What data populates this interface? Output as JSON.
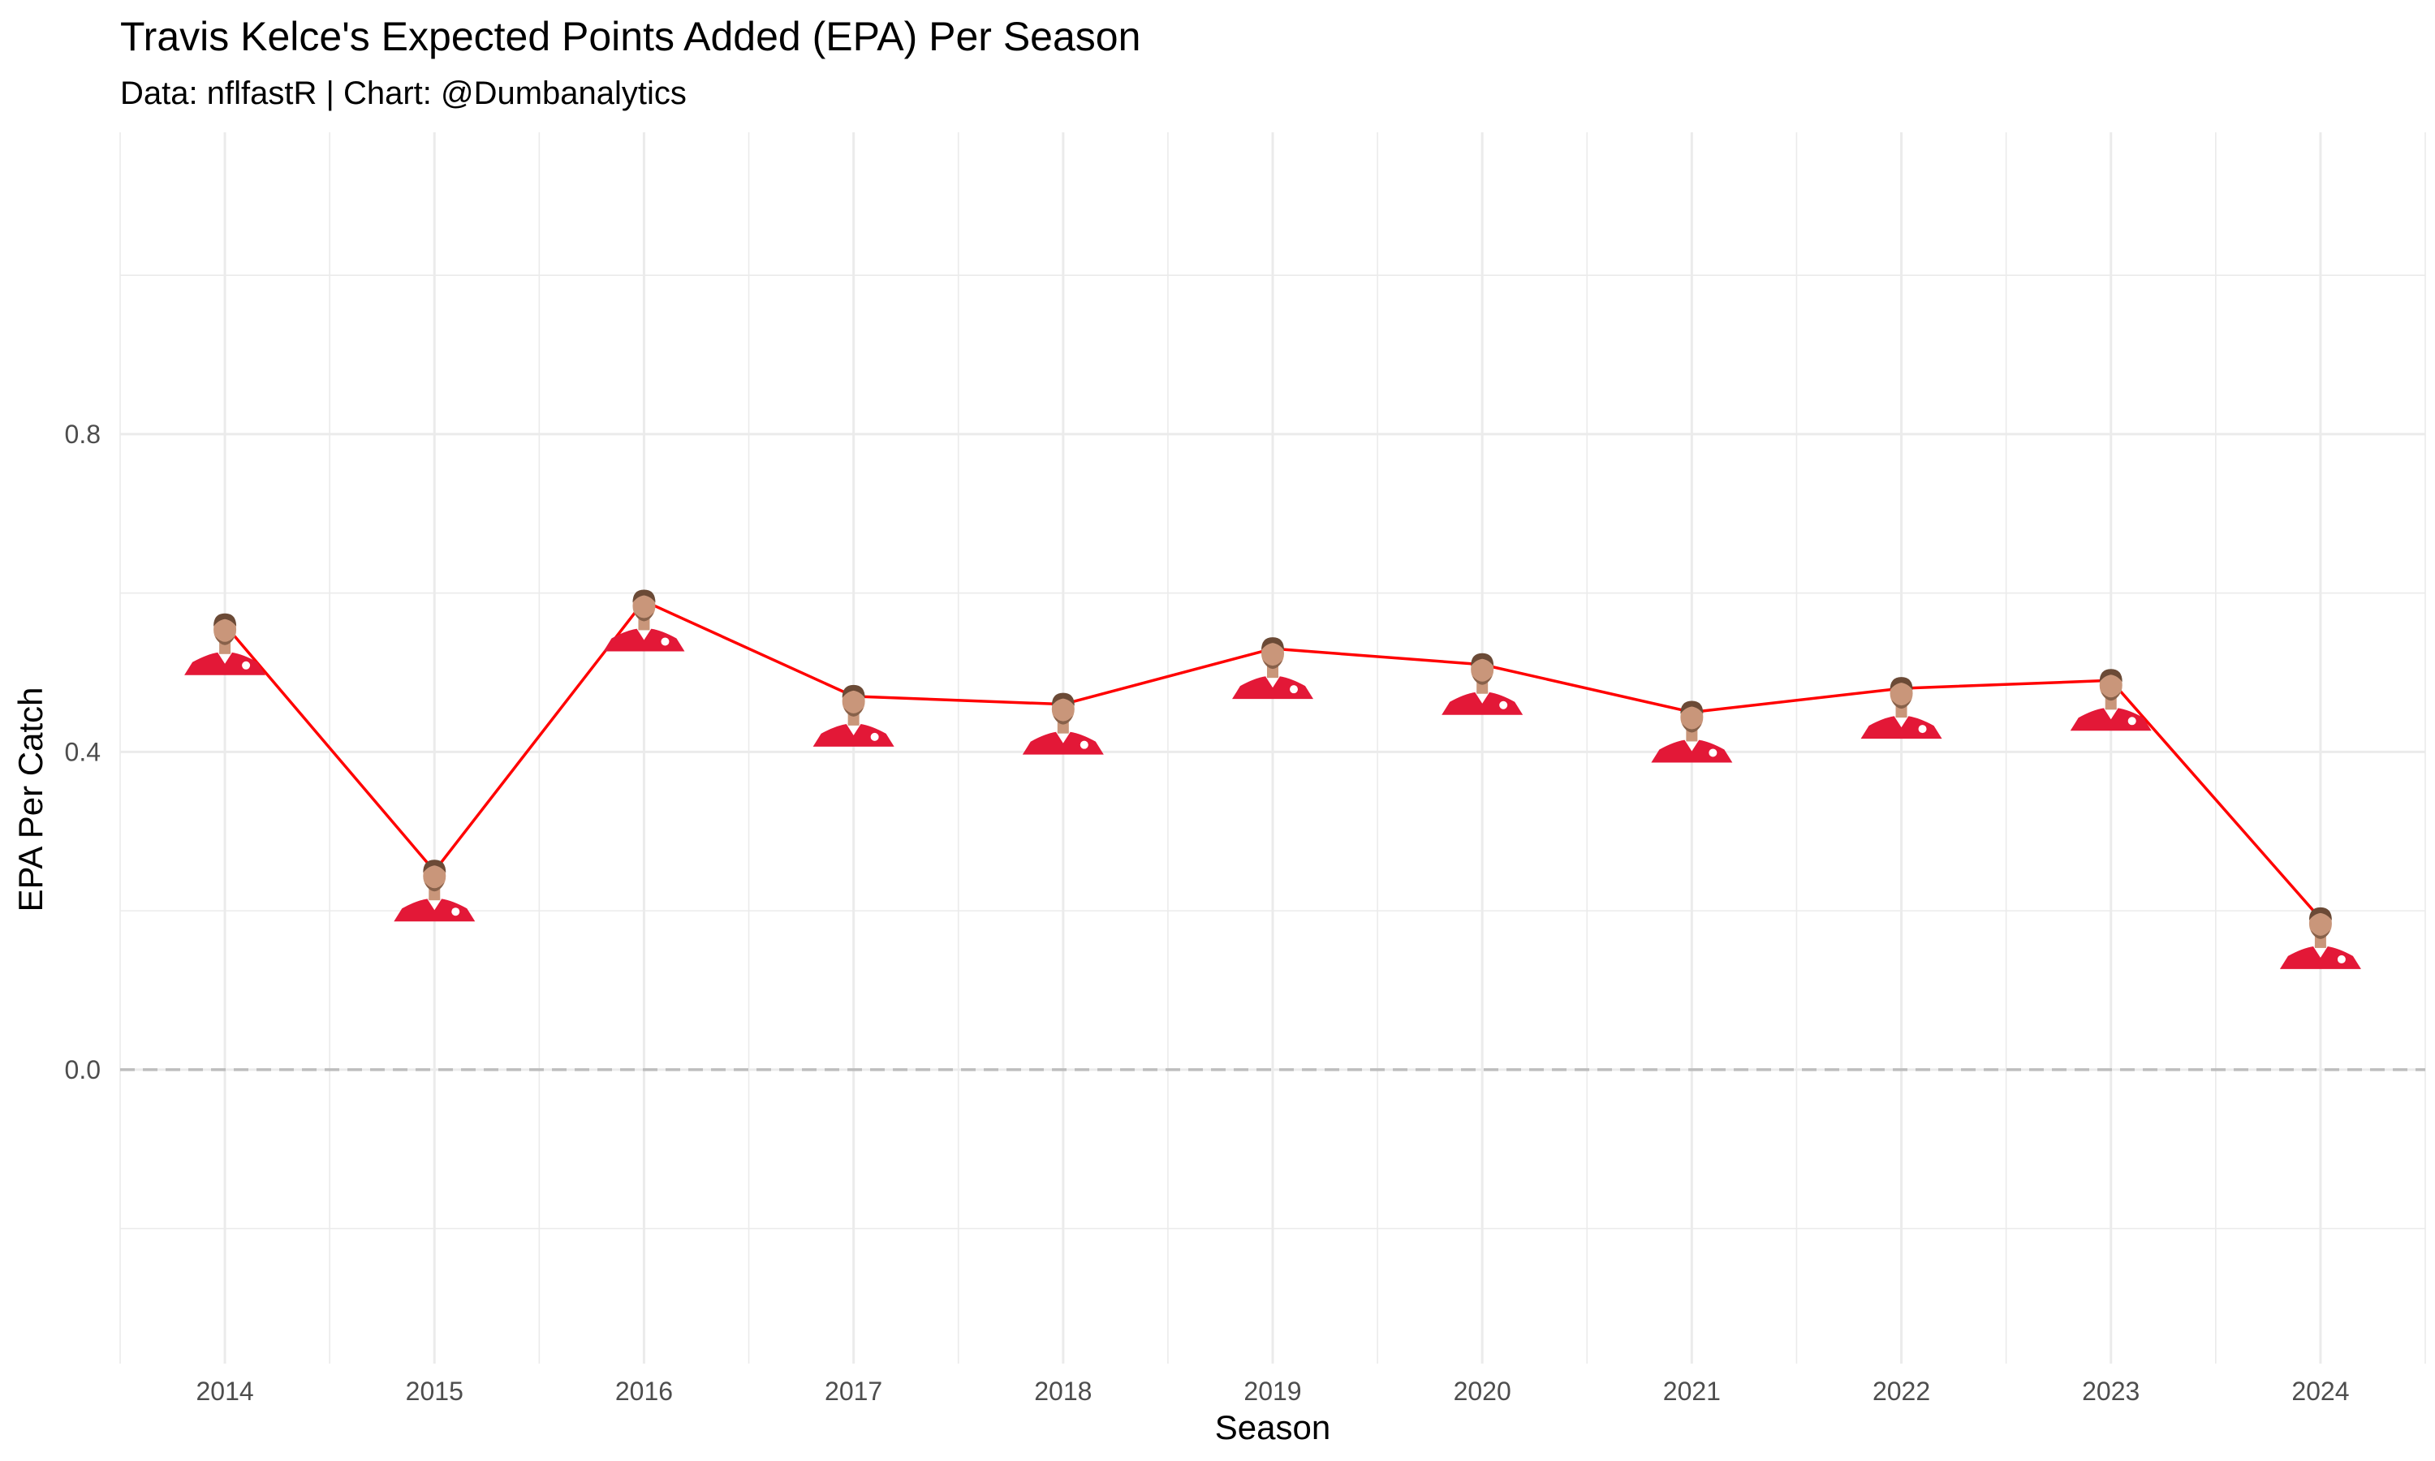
{
  "chart_data": {
    "type": "line",
    "title": "Travis Kelce's Expected Points Added (EPA) Per Season",
    "subtitle": "Data: nflfastR | Chart: @Dumbanalytics",
    "xlabel": "Season",
    "ylabel": "EPA Per Catch",
    "x": [
      2014,
      2015,
      2016,
      2017,
      2018,
      2019,
      2020,
      2021,
      2022,
      2023,
      2024
    ],
    "series": [
      {
        "values": [
          0.56,
          0.25,
          0.59,
          0.47,
          0.46,
          0.53,
          0.51,
          0.45,
          0.48,
          0.49,
          0.19
        ]
      }
    ],
    "x_ticks": [
      "2014",
      "2015",
      "2016",
      "2017",
      "2018",
      "2019",
      "2020",
      "2021",
      "2022",
      "2023",
      "2024"
    ],
    "y_ticks": [
      "0.0",
      "0.4",
      "0.8"
    ],
    "y_tick_values": [
      0.0,
      0.4,
      0.8
    ],
    "xlim": [
      2013.5,
      2024.5
    ],
    "ylim": [
      -0.37,
      1.18
    ],
    "reference_line_y": 0.0,
    "grid": true,
    "legend": false,
    "marker": "player-headshot-icon",
    "colors": {
      "line": "#ff0000",
      "jersey": "#e31837",
      "skin": "#c9967a",
      "hair": "#6b4a36",
      "grid": "#ebebeb",
      "reference": "#bdbdbd"
    }
  }
}
